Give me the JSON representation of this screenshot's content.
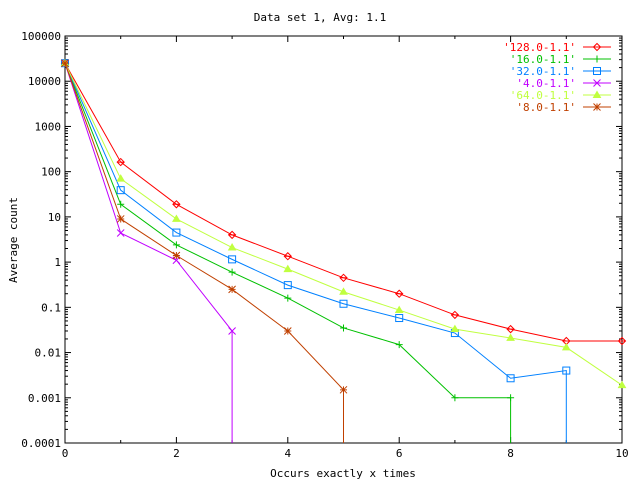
{
  "chart_data": {
    "type": "line",
    "title": "Data set 1, Avg: 1.1",
    "xlabel": "Occurs exactly x times",
    "ylabel": "Average count",
    "xlim": [
      0,
      10
    ],
    "ylim": [
      0.0001,
      100000
    ],
    "yscale": "log",
    "x_ticks": [
      "0",
      "2",
      "4",
      "6",
      "8",
      "10"
    ],
    "y_ticks": [
      "0.0001",
      "0.001",
      "0.01",
      "0.1",
      "1",
      "10",
      "100",
      "1000",
      "10000",
      "100000"
    ],
    "legend_position": "top-right",
    "grid": false,
    "x": [
      0,
      1,
      2,
      3,
      4,
      5,
      6,
      7,
      8,
      9,
      10
    ],
    "series": [
      {
        "name": "'128.0-1.1'",
        "color": "#ff0000",
        "marker": "diamond",
        "values": [
          25000,
          163,
          19,
          4,
          1.35,
          0.45,
          0.2,
          0.068,
          0.033,
          0.018,
          0.018
        ]
      },
      {
        "name": "'16.0-1.1'",
        "color": "#00c000",
        "marker": "plus",
        "values": [
          25000,
          19,
          2.4,
          0.6,
          0.16,
          0.035,
          0.015,
          0.001,
          0.001,
          0,
          null
        ]
      },
      {
        "name": "'32.0-1.1'",
        "color": "#0080ff",
        "marker": "square",
        "values": [
          25000,
          39,
          4.5,
          1.15,
          0.31,
          0.12,
          0.058,
          0.027,
          0.0027,
          0.004,
          0
        ]
      },
      {
        "name": "'4.0-1.1'",
        "color": "#c000ff",
        "marker": "x",
        "values": [
          25000,
          4.4,
          1.1,
          0.03,
          0,
          null,
          null,
          null,
          null,
          null,
          null
        ]
      },
      {
        "name": "'64.0-1.1'",
        "color": "#c0ff40",
        "marker": "triangle",
        "values": [
          25000,
          70,
          9,
          2.1,
          0.7,
          0.22,
          0.087,
          0.033,
          0.021,
          0.013,
          0.0019
        ]
      },
      {
        "name": "'8.0-1.1'",
        "color": "#c04000",
        "marker": "star",
        "values": [
          25000,
          9,
          1.4,
          0.25,
          0.03,
          0.0015,
          0,
          null,
          null,
          null,
          null
        ]
      }
    ]
  }
}
